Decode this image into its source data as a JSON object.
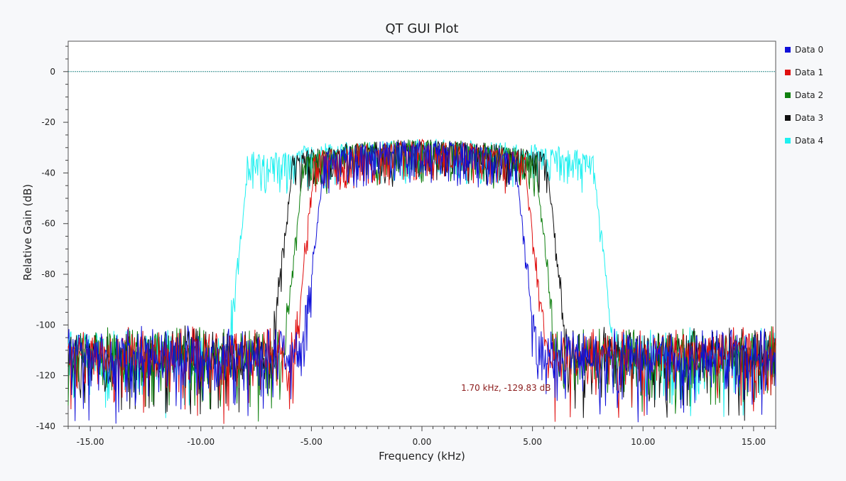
{
  "window": {
    "title": "QT GUI Plot"
  },
  "chart_data": {
    "type": "line",
    "title": "QT GUI Plot",
    "xlabel": "Frequency (kHz)",
    "ylabel": "Relative Gain (dB)",
    "xlim": [
      -16.0,
      16.0
    ],
    "ylim": [
      -140,
      12
    ],
    "xticks": [
      -15.0,
      -10.0,
      -5.0,
      0.0,
      5.0,
      10.0,
      15.0
    ],
    "xtick_labels": [
      "-15.00",
      "-10.00",
      "-5.00",
      "0.00",
      "5.00",
      "10.00",
      "15.00"
    ],
    "yticks": [
      0,
      -20,
      -40,
      -60,
      -80,
      -100,
      -120,
      -140
    ],
    "ytick_labels": [
      "0",
      "-20",
      "-40",
      "-60",
      "-80",
      "-100",
      "-120",
      "-140"
    ],
    "grid": false,
    "legend_position": "right",
    "reference_line": {
      "y": 0,
      "color": "#2e8b8b"
    },
    "readout": "1.70 kHz, -129.83 dB",
    "readout_point": {
      "x": 3.8,
      "y": -126
    },
    "noise_floor": -110,
    "passband_level": -33,
    "series": [
      {
        "name": "Data 0",
        "color": "#1010d8",
        "band_edges": [
          -4.5,
          4.3
        ]
      },
      {
        "name": "Data 1",
        "color": "#e01010",
        "band_edges": [
          -4.9,
          4.7
        ]
      },
      {
        "name": "Data 2",
        "color": "#108010",
        "band_edges": [
          -5.4,
          5.2
        ]
      },
      {
        "name": "Data 3",
        "color": "#101010",
        "band_edges": [
          -5.9,
          5.7
        ]
      },
      {
        "name": "Data 4",
        "color": "#1ef0f0",
        "band_edges": [
          -7.9,
          7.8
        ]
      }
    ]
  }
}
